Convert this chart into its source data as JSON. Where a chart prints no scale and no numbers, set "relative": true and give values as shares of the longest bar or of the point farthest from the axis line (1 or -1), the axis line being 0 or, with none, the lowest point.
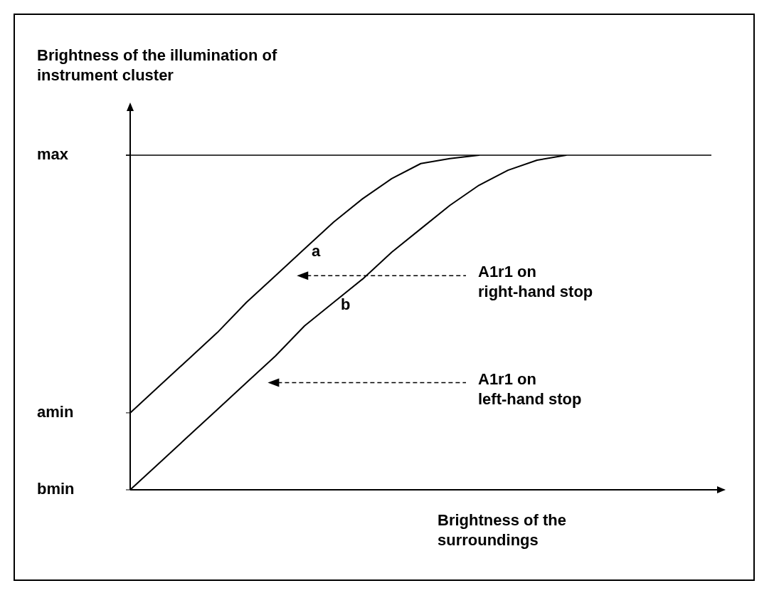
{
  "chart_data": {
    "type": "line",
    "relative": true,
    "ylabel": "Brightness of the illumination of\ninstrument cluster",
    "xlabel": "Brightness of the\nsurroundings",
    "categories": [
      null,
      null,
      null,
      null,
      null,
      null,
      null,
      null,
      null,
      null,
      null,
      null,
      null,
      null,
      null,
      null,
      null,
      null,
      null,
      null,
      null
    ],
    "series": [
      {
        "name": "a",
        "color": "#000000",
        "values": [
          0.23,
          0.31,
          0.39,
          0.47,
          0.56,
          0.64,
          0.72,
          0.8,
          0.87,
          0.93,
          0.975,
          0.99,
          1,
          null,
          null,
          null,
          null,
          null,
          null,
          null,
          null
        ]
      },
      {
        "name": "b",
        "color": "#000000",
        "values": [
          0,
          0.08,
          0.16,
          0.24,
          0.32,
          0.4,
          0.49,
          0.56,
          0.63,
          0.71,
          0.78,
          0.85,
          0.91,
          0.955,
          0.985,
          1,
          null,
          null,
          null,
          null,
          null
        ]
      }
    ],
    "ref_lines": [
      {
        "axis": "y",
        "value": 1
      }
    ],
    "annotations": [
      "A1r1 on\nright-hand stop",
      "A1r1 on\nleft-hand stop",
      "amin",
      "bmin",
      "max"
    ],
    "grid": false,
    "legend": false,
    "marker": "none",
    "line_style": "solid"
  }
}
